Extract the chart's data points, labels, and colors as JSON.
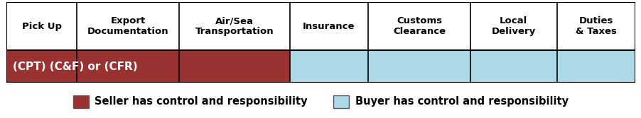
{
  "columns": [
    "Pick Up",
    "Export\nDocumentation",
    "Air/Sea\nTransportation",
    "Insurance",
    "Customs\nClearance",
    "Local\nDelivery",
    "Duties\n& Taxes"
  ],
  "col_widths": [
    0.88,
    1.28,
    1.38,
    0.98,
    1.28,
    1.08,
    0.98
  ],
  "seller_cols": 3,
  "bar_label": "(CPT) (C&F) or (CFR)",
  "seller_color": "#9B3232",
  "buyer_color": "#ADD8E6",
  "seller_legend": "Seller has control and responsibility",
  "buyer_legend": "Buyer has control and responsibility",
  "bg_color": "#ffffff",
  "header_fontsize": 9.5,
  "bar_fontsize": 11,
  "legend_fontsize": 10.5
}
